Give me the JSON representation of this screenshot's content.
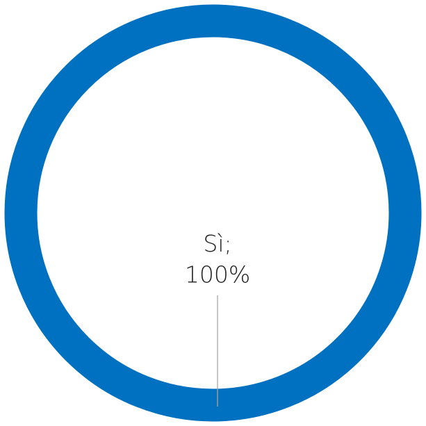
{
  "chart_data": {
    "type": "donut",
    "categories": [
      "Sì"
    ],
    "values": [
      100
    ],
    "value_labels": [
      "100%"
    ],
    "label_separator": ";",
    "colors": [
      "#0070c0"
    ]
  }
}
